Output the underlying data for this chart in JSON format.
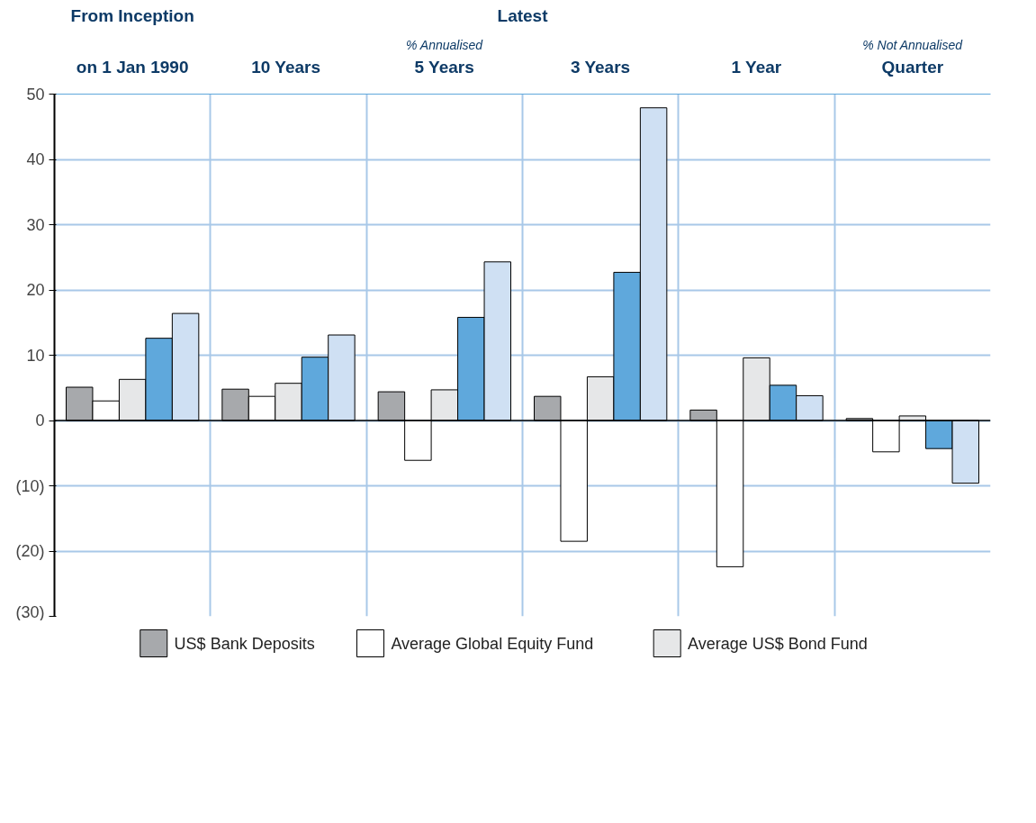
{
  "chart_data": {
    "type": "bar",
    "categories": [
      "on 1 Jan 1990",
      "10  Years",
      "5 Years",
      "3 Years",
      "1 Year",
      "Quarter"
    ],
    "series": [
      {
        "name": "US$ Bank Deposits",
        "color": "#a7a9ac",
        "values": [
          5.1,
          4.8,
          4.4,
          3.7,
          1.6,
          0.3
        ]
      },
      {
        "name": "Average Global Equity Fund",
        "color": "#ffffff",
        "values": [
          3.0,
          3.7,
          -6.1,
          -18.5,
          -22.4,
          -4.8
        ]
      },
      {
        "name": "Average US$ Bond Fund",
        "color": "#e6e7e8",
        "values": [
          6.3,
          5.7,
          4.7,
          6.7,
          9.6,
          0.7
        ]
      },
      {
        "color": "#5fa8dc",
        "values": [
          12.6,
          9.7,
          15.8,
          22.7,
          5.4,
          -4.3
        ]
      },
      {
        "color": "#cfe0f3",
        "values": [
          16.4,
          13.1,
          24.3,
          47.9,
          3.8,
          -9.6
        ]
      }
    ],
    "ylim": [
      -30,
      50
    ],
    "yticks": [
      {
        "value": -30,
        "label": "(30)"
      },
      {
        "value": -20,
        "label": "(20)"
      },
      {
        "value": -10,
        "label": "(10)"
      },
      0,
      10,
      20,
      30,
      40,
      50
    ],
    "annotations": [
      "From Inception",
      "Latest",
      "% Annualised",
      "% Not Annualised"
    ],
    "grid": true,
    "legend": "bottom"
  }
}
